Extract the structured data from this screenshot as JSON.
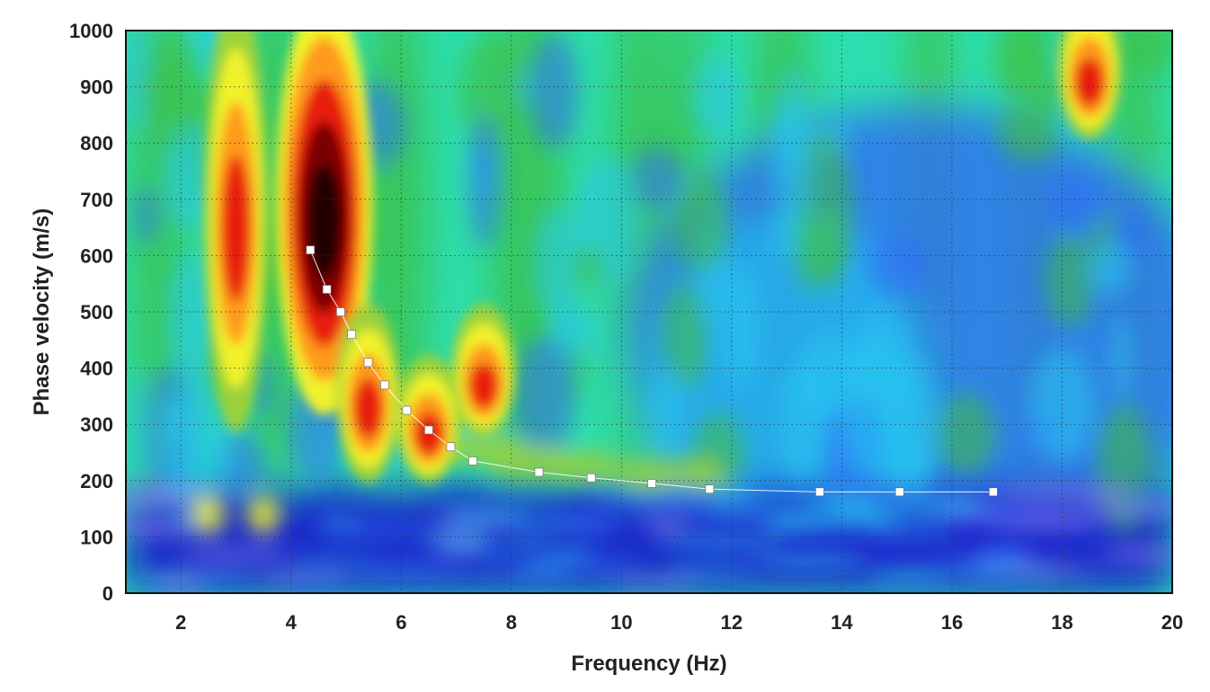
{
  "chart_data": {
    "type": "heatmap",
    "title": "",
    "xlabel": "Frequency (Hz)",
    "ylabel": "Phase velocity (m/s)",
    "xlim": [
      1,
      20
    ],
    "ylim": [
      0,
      1000
    ],
    "x_ticks": [
      2,
      4,
      6,
      8,
      10,
      12,
      14,
      16,
      18,
      20
    ],
    "y_ticks": [
      0,
      100,
      200,
      300,
      400,
      500,
      600,
      700,
      800,
      900,
      1000
    ],
    "grid": true,
    "colormap": [
      "#1a1acc",
      "#2e6ef5",
      "#27c6f0",
      "#2ddfb0",
      "#3fbe3c",
      "#9bd23a",
      "#f2f22a",
      "#ff9a1a",
      "#e81e0e",
      "#7a0000",
      "#220000"
    ],
    "energy_ridges": [
      {
        "frequency": 3.0,
        "velocity_from": 350,
        "velocity_to": 1000,
        "level": "high"
      },
      {
        "frequency": 4.6,
        "velocity_from": 380,
        "velocity_to": 1000,
        "level": "max"
      },
      {
        "frequency": 5.4,
        "velocity_from": 260,
        "velocity_to": 450,
        "level": "high"
      },
      {
        "frequency": 6.5,
        "velocity_from": 260,
        "velocity_to": 360,
        "level": "high"
      },
      {
        "frequency": 7.5,
        "velocity_from": 340,
        "velocity_to": 450,
        "level": "high"
      },
      {
        "frequency": 18.5,
        "velocity_from": 870,
        "velocity_to": 1000,
        "level": "high"
      }
    ],
    "series": [
      {
        "x": [
          4.35,
          4.65,
          4.9,
          5.1,
          5.4,
          5.7,
          6.1,
          6.5,
          6.9,
          7.3,
          8.5,
          9.45,
          10.55,
          11.6,
          13.6,
          15.05,
          16.75
        ],
        "y": [
          610,
          540,
          500,
          460,
          410,
          370,
          325,
          290,
          260,
          235,
          215,
          205,
          195,
          185,
          180,
          180,
          180
        ],
        "color": "#ffffff"
      }
    ]
  }
}
